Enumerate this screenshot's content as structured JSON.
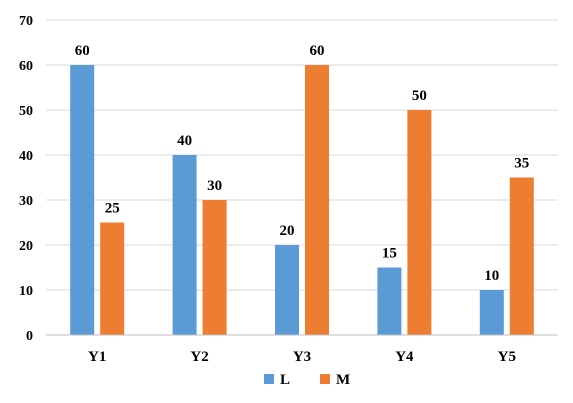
{
  "chart_data": {
    "type": "bar",
    "categories": [
      "Y1",
      "Y2",
      "Y3",
      "Y4",
      "Y5"
    ],
    "series": [
      {
        "name": "L",
        "values": [
          60,
          40,
          20,
          15,
          10
        ],
        "color": "#5B9BD5"
      },
      {
        "name": "M",
        "values": [
          25,
          30,
          60,
          50,
          35
        ],
        "color": "#ED7D31"
      }
    ],
    "yticks": [
      0,
      10,
      20,
      30,
      40,
      50,
      60,
      70
    ],
    "ylim": [
      0,
      70
    ],
    "grid": true,
    "legend": "bottom-center",
    "xlabel": "",
    "ylabel": "",
    "title": ""
  }
}
